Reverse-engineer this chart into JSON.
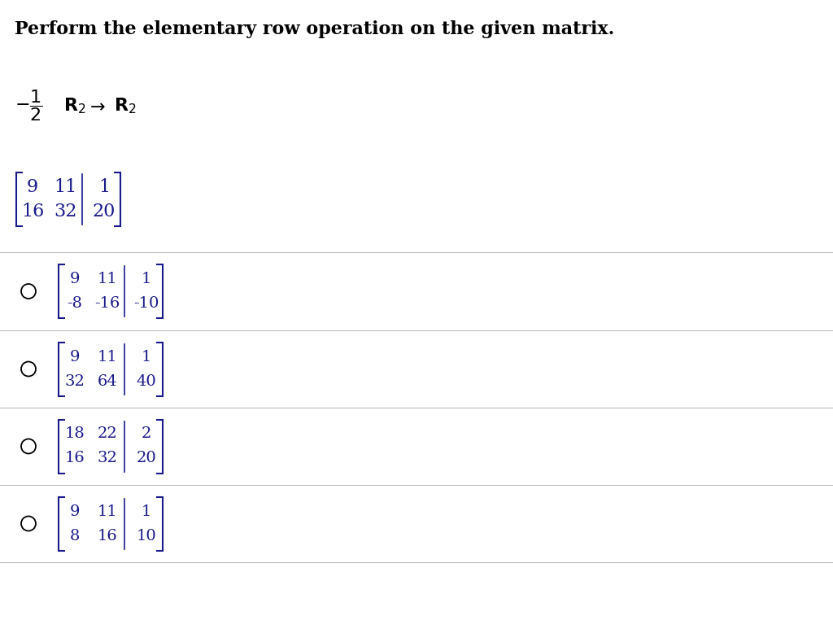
{
  "title": "Perform the elementary row operation on the given matrix.",
  "given_matrix": [
    [
      9,
      11,
      1
    ],
    [
      16,
      32,
      20
    ]
  ],
  "options": [
    {
      "rows": [
        [
          9,
          11,
          1
        ],
        [
          -8,
          -16,
          -10
        ]
      ]
    },
    {
      "rows": [
        [
          9,
          11,
          1
        ],
        [
          32,
          64,
          40
        ]
      ]
    },
    {
      "rows": [
        [
          18,
          22,
          2
        ],
        [
          16,
          32,
          20
        ]
      ]
    },
    {
      "rows": [
        [
          9,
          11,
          1
        ],
        [
          8,
          16,
          10
        ]
      ]
    }
  ],
  "bg_color": "#ffffff",
  "text_color": "#000000",
  "matrix_color": "#1a1a8c",
  "divider_color": "#bbbbbb",
  "title_fontsize": 16,
  "op_fontsize": 16,
  "matrix_fontsize_main": 16,
  "matrix_fontsize_opt": 14
}
